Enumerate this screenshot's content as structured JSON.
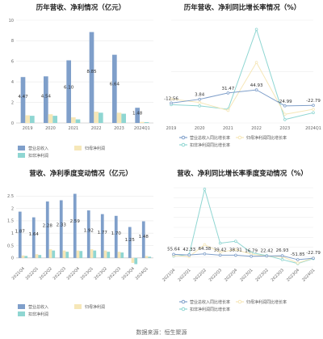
{
  "footer": "数据来源：恒生聚源",
  "colors": {
    "revenue": "#7f9fca",
    "profit": "#f6e7b8",
    "netprofit": "#8fd6d2",
    "grid": "#e9e9e9",
    "axis": "#bbbbbb"
  },
  "chart_data": [
    {
      "type": "bar",
      "title": "历年营收、净利情况（亿元）",
      "categories": [
        "2019",
        "2020",
        "2021",
        "2022",
        "2023",
        "2024Q1"
      ],
      "ylim": [
        0,
        10
      ],
      "yticks": [
        0,
        2,
        4,
        6,
        8,
        10
      ],
      "series": [
        {
          "name": "营业总收入",
          "values": [
            4.47,
            4.54,
            6.1,
            8.85,
            6.64,
            1.48
          ],
          "labels": [
            "4.47",
            "4.54",
            "6.10",
            "8.85",
            "6.64",
            "1.48"
          ]
        },
        {
          "name": "归母净利润",
          "values": [
            0.75,
            0.85,
            0.55,
            1.1,
            1.0,
            0.1
          ],
          "labels": []
        },
        {
          "name": "扣非净利润",
          "values": [
            0.7,
            0.7,
            0.35,
            1.0,
            0.9,
            0.08
          ],
          "labels": []
        }
      ]
    },
    {
      "type": "line",
      "title": "历年营收、净利同比增长率情况（%）",
      "categories": [
        "2019",
        "2020",
        "2021",
        "2022",
        "2023",
        "2024Q1"
      ],
      "ylim": [
        -100,
        350
      ],
      "series": [
        {
          "name": "营业总收入同比增长率",
          "values": [
            -12.56,
            3.84,
            31.47,
            44.93,
            -24.99,
            -22.79
          ],
          "labels": [
            "-12.56",
            "3.84",
            "31.47",
            "44.93",
            "-24.99",
            "-22.79"
          ]
        },
        {
          "name": "归母净利润同比增长率",
          "values": [
            5,
            -10,
            -45,
            165,
            -62,
            -40
          ],
          "labels": []
        },
        {
          "name": "扣非净利润同比增长率",
          "values": [
            -20,
            -25,
            -40,
            310,
            -85,
            -55
          ],
          "labels": []
        }
      ]
    },
    {
      "type": "bar",
      "title": "营收、净利季度变动情况（亿元）",
      "categories": [
        "2021Q4",
        "2022Q1",
        "2022Q2",
        "2022Q3",
        "2022Q4",
        "2023Q1",
        "2023Q2",
        "2023Q3",
        "2023Q4",
        "2024Q1"
      ],
      "ylim": [
        -0.3,
        3
      ],
      "yticks": [
        0,
        0.5,
        1,
        1.5,
        2,
        2.5
      ],
      "series": [
        {
          "name": "营业总收入",
          "values": [
            1.87,
            1.64,
            2.28,
            2.33,
            2.59,
            1.92,
            1.77,
            1.7,
            1.25,
            1.48
          ],
          "labels": [
            "1.87",
            "1.64",
            "2.28",
            "2.33",
            "2.59",
            "1.92",
            "1.77",
            "1.70",
            "1.25",
            "1.48"
          ]
        },
        {
          "name": "归母净利润",
          "values": [
            0.1,
            0.15,
            0.35,
            0.3,
            0.3,
            0.35,
            0.3,
            0.25,
            -0.2,
            0.08
          ],
          "labels": []
        },
        {
          "name": "扣非净利润",
          "values": [
            0.08,
            0.12,
            0.3,
            0.25,
            0.28,
            0.3,
            0.25,
            0.22,
            -0.25,
            0.05
          ],
          "labels": []
        }
      ]
    },
    {
      "type": "line",
      "title": "营收、净利同比增长率季度变动情况（%）",
      "categories": [
        "2021Q4",
        "2022Q1",
        "2022Q2",
        "2022Q3",
        "2022Q4",
        "2023Q1",
        "2023Q2",
        "2023Q3",
        "2023Q4",
        "2024Q1"
      ],
      "ylim": [
        -200,
        1400
      ],
      "yticks": [
        -200,
        0,
        200,
        400,
        600,
        800,
        1000,
        1200,
        1400
      ],
      "series": [
        {
          "name": "营业总收入同比增长率",
          "values": [
            55.64,
            42.33,
            64.38,
            39.42,
            38.31,
            16.79,
            22.42,
            26.93,
            -51.85,
            -22.79
          ],
          "labels": [
            "55.64",
            "42.33",
            "64.38",
            "39.42",
            "38.31",
            "16.79",
            "22.42",
            "26.93",
            "-51.85",
            "-22.79"
          ]
        },
        {
          "name": "归母净利润同比增长率",
          "values": [
            30,
            10,
            250,
            100,
            150,
            60,
            20,
            10,
            -120,
            -20
          ],
          "labels": []
        },
        {
          "name": "扣非净利润同比增长率",
          "values": [
            20,
            50,
            1370,
            280,
            320,
            90,
            30,
            -50,
            -130,
            -30
          ],
          "labels": []
        }
      ]
    }
  ]
}
